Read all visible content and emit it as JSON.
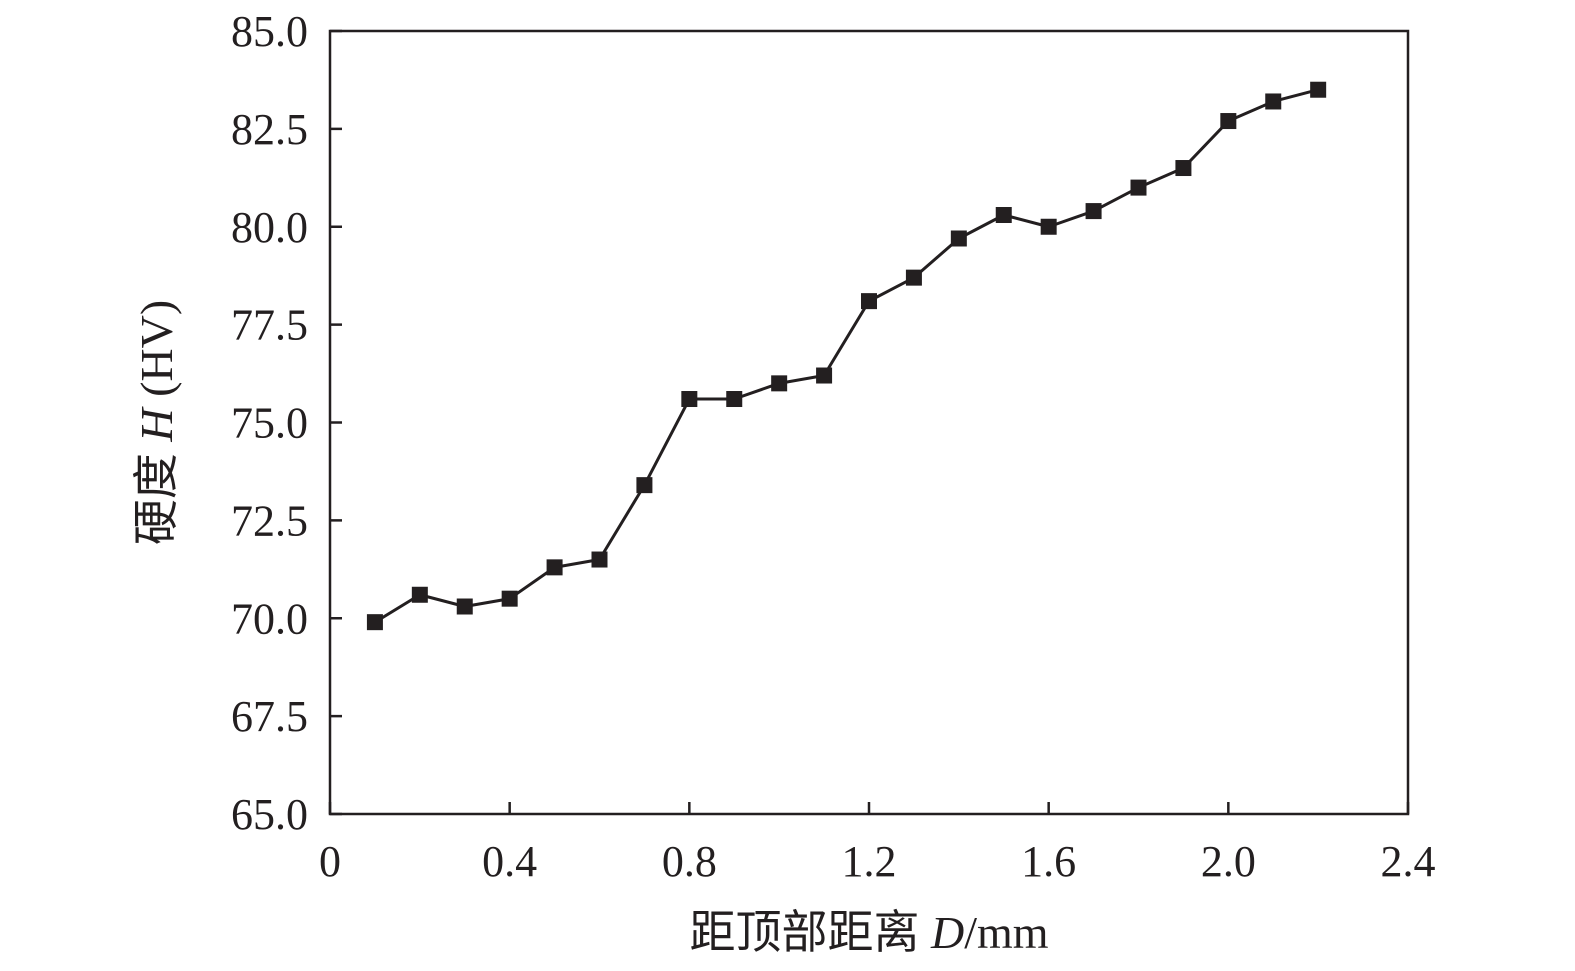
{
  "chart_data": {
    "type": "line",
    "title": "",
    "xlabel": {
      "prefix": "距顶部距离 ",
      "var": "D",
      "suffix": "/mm"
    },
    "ylabel": {
      "prefix": "硬度 ",
      "var": "H",
      "suffix": " (HV)"
    },
    "xlim": [
      0,
      2.4
    ],
    "ylim": [
      65.0,
      85.0
    ],
    "xticks": [
      "0",
      "0.4",
      "0.8",
      "1.2",
      "1.6",
      "2.0",
      "2.4"
    ],
    "xtick_values": [
      0,
      0.4,
      0.8,
      1.2,
      1.6,
      2.0,
      2.4
    ],
    "yticks": [
      "65.0",
      "67.5",
      "70.0",
      "72.5",
      "75.0",
      "77.5",
      "80.0",
      "82.5",
      "85.0"
    ],
    "ytick_values": [
      65.0,
      67.5,
      70.0,
      72.5,
      75.0,
      77.5,
      80.0,
      82.5,
      85.0
    ],
    "grid": false,
    "legend": "none",
    "series": [
      {
        "marker": "square",
        "color": "#231f20",
        "x": [
          0.1,
          0.2,
          0.3,
          0.4,
          0.5,
          0.6,
          0.7,
          0.8,
          0.9,
          1.0,
          1.1,
          1.2,
          1.3,
          1.4,
          1.5,
          1.6,
          1.7,
          1.8,
          1.9,
          2.0,
          2.1,
          2.2
        ],
        "y": [
          69.9,
          70.6,
          70.3,
          70.5,
          71.3,
          71.5,
          73.4,
          75.6,
          75.6,
          76.0,
          76.2,
          78.1,
          78.7,
          79.7,
          80.3,
          80.0,
          80.4,
          81.0,
          81.5,
          82.7,
          83.2,
          83.5
        ]
      }
    ]
  }
}
